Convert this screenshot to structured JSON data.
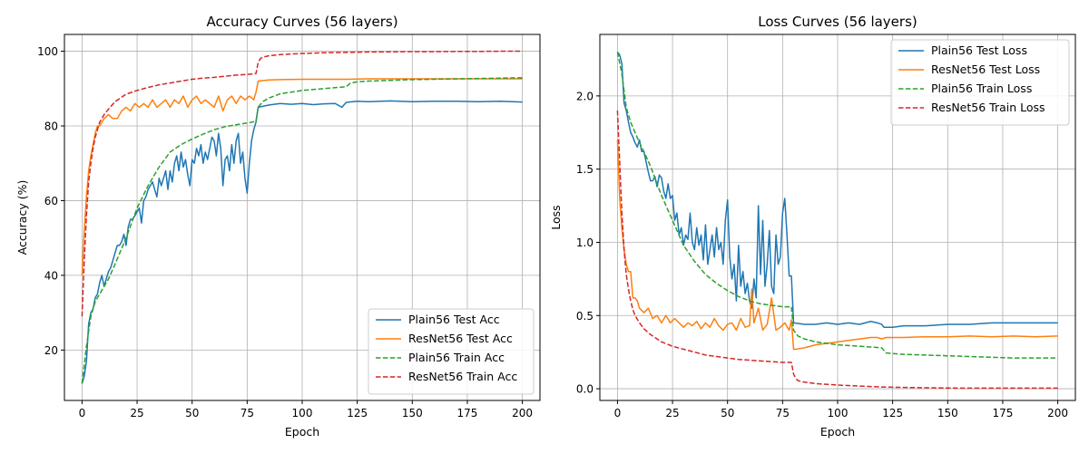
{
  "chart_data": [
    {
      "type": "line",
      "title": "Accuracy Curves (56 layers)",
      "xlabel": "Epoch",
      "ylabel": "Accuracy (%)",
      "xlim": [
        -8,
        208
      ],
      "ylim": [
        6.5,
        104.5
      ],
      "xticks": [
        0,
        25,
        50,
        75,
        100,
        125,
        150,
        175,
        200
      ],
      "yticks": [
        20,
        40,
        60,
        80,
        100
      ],
      "grid": true,
      "legend_position": "lower-right",
      "series": [
        {
          "name": "Plain56 Test Acc",
          "color": "#1f77b4",
          "style": "solid",
          "x": [
            0,
            1,
            2,
            3,
            4,
            5,
            6,
            7,
            8,
            9,
            10,
            11,
            12,
            13,
            14,
            15,
            16,
            17,
            18,
            19,
            20,
            21,
            22,
            23,
            24,
            25,
            26,
            27,
            28,
            29,
            30,
            31,
            32,
            33,
            34,
            35,
            36,
            37,
            38,
            39,
            40,
            41,
            42,
            43,
            44,
            45,
            46,
            47,
            48,
            49,
            50,
            51,
            52,
            53,
            54,
            55,
            56,
            57,
            58,
            59,
            60,
            61,
            62,
            63,
            64,
            65,
            66,
            67,
            68,
            69,
            70,
            71,
            72,
            73,
            74,
            75,
            76,
            77,
            78,
            79,
            80,
            85,
            90,
            95,
            100,
            105,
            110,
            115,
            118,
            120,
            125,
            130,
            140,
            150,
            160,
            170,
            180,
            190,
            200
          ],
          "y": [
            11,
            13,
            17,
            27,
            30,
            31,
            34,
            35,
            38,
            40,
            37,
            39,
            41,
            42,
            44,
            46,
            48,
            48,
            49,
            51,
            48,
            53,
            55,
            55,
            56,
            57,
            58,
            54,
            60,
            61,
            63,
            64,
            65,
            63,
            61,
            66,
            64,
            66,
            68,
            63,
            68,
            65,
            70,
            72,
            68,
            73,
            69,
            71,
            67,
            64,
            71,
            70,
            74,
            72,
            75,
            70,
            73,
            71,
            74,
            77,
            76,
            72,
            78,
            74,
            64,
            71,
            72,
            68,
            75,
            70,
            76,
            78,
            70,
            73,
            66,
            62,
            70,
            76,
            79,
            81,
            85,
            85.6,
            86,
            85.8,
            86,
            85.7,
            85.9,
            86,
            85,
            86.3,
            86.6,
            86.5,
            86.7,
            86.5,
            86.6,
            86.6,
            86.5,
            86.6,
            86.4
          ]
        },
        {
          "name": "ResNet56 Test Acc",
          "color": "#ff7f0e",
          "style": "solid",
          "x": [
            0,
            1,
            2,
            3,
            4,
            5,
            6,
            7,
            8,
            9,
            10,
            12,
            14,
            16,
            18,
            20,
            22,
            24,
            26,
            28,
            30,
            32,
            34,
            36,
            38,
            40,
            42,
            44,
            46,
            48,
            50,
            52,
            54,
            56,
            58,
            60,
            62,
            64,
            66,
            68,
            70,
            72,
            74,
            76,
            78,
            79,
            80,
            85,
            90,
            100,
            110,
            120,
            130,
            140,
            150,
            160,
            170,
            180,
            190,
            200
          ],
          "y": [
            40,
            52,
            61,
            68,
            72,
            75,
            78,
            80,
            80,
            81,
            82,
            83,
            82,
            82,
            84,
            85,
            84,
            86,
            85,
            86,
            85,
            87,
            85,
            86,
            87,
            85,
            87,
            86,
            88,
            85,
            87,
            88,
            86,
            87,
            86,
            85,
            88,
            84,
            87,
            88,
            86,
            88,
            87,
            88,
            87,
            89,
            92,
            92.3,
            92.4,
            92.5,
            92.5,
            92.5,
            92.6,
            92.6,
            92.6,
            92.6,
            92.6,
            92.6,
            92.6,
            92.6
          ]
        },
        {
          "name": "Plain56 Train Acc",
          "color": "#2ca02c",
          "style": "dashed",
          "x": [
            0,
            2,
            4,
            6,
            8,
            10,
            12,
            15,
            20,
            25,
            30,
            35,
            40,
            45,
            50,
            55,
            60,
            65,
            70,
            75,
            79,
            80,
            82,
            85,
            90,
            100,
            110,
            120,
            122,
            125,
            130,
            140,
            150,
            160,
            170,
            180,
            190,
            200
          ],
          "y": [
            11,
            21,
            29,
            33,
            35,
            37,
            39,
            43,
            50,
            58,
            64,
            69,
            73,
            75,
            76.5,
            77.8,
            79,
            79.8,
            80.3,
            80.8,
            81.2,
            85,
            86.5,
            87.5,
            88.6,
            89.5,
            90,
            90.5,
            91.5,
            91.8,
            92,
            92.2,
            92.4,
            92.5,
            92.6,
            92.7,
            92.8,
            92.9
          ]
        },
        {
          "name": "ResNet56 Train Acc",
          "color": "#d62728",
          "style": "dashed",
          "x": [
            0,
            1,
            2,
            3,
            4,
            5,
            6,
            7,
            8,
            10,
            12,
            15,
            20,
            25,
            30,
            35,
            40,
            45,
            50,
            55,
            60,
            65,
            70,
            75,
            79,
            80,
            81,
            82,
            85,
            90,
            100,
            110,
            120,
            130,
            140,
            150,
            160,
            170,
            180,
            190,
            200
          ],
          "y": [
            29,
            44,
            56,
            65,
            70,
            74,
            77,
            79,
            81,
            83,
            84.5,
            86.5,
            88.5,
            89.5,
            90.3,
            91,
            91.5,
            92,
            92.5,
            92.8,
            93,
            93.3,
            93.6,
            93.8,
            94,
            97,
            98,
            98.4,
            98.8,
            99.1,
            99.4,
            99.6,
            99.7,
            99.8,
            99.85,
            99.9,
            99.9,
            99.95,
            99.95,
            100,
            100
          ]
        }
      ]
    },
    {
      "type": "line",
      "title": "Loss Curves (56 layers)",
      "xlabel": "Epoch",
      "ylabel": "Loss",
      "xlim": [
        -8,
        208
      ],
      "ylim": [
        -0.08,
        2.42
      ],
      "xticks": [
        0,
        25,
        50,
        75,
        100,
        125,
        150,
        175,
        200
      ],
      "yticks": [
        0.0,
        0.5,
        1.0,
        1.5,
        2.0
      ],
      "grid": true,
      "legend_position": "upper-right",
      "series": [
        {
          "name": "Plain56 Test Loss",
          "color": "#1f77b4",
          "style": "solid",
          "x": [
            0,
            1,
            2,
            3,
            4,
            5,
            6,
            7,
            8,
            9,
            10,
            11,
            12,
            13,
            14,
            15,
            16,
            17,
            18,
            19,
            20,
            21,
            22,
            23,
            24,
            25,
            26,
            27,
            28,
            29,
            30,
            31,
            32,
            33,
            34,
            35,
            36,
            37,
            38,
            39,
            40,
            41,
            42,
            43,
            44,
            45,
            46,
            47,
            48,
            49,
            50,
            51,
            52,
            53,
            54,
            55,
            56,
            57,
            58,
            59,
            60,
            61,
            62,
            63,
            64,
            65,
            66,
            67,
            68,
            69,
            70,
            71,
            72,
            73,
            74,
            75,
            76,
            77,
            78,
            79,
            80,
            85,
            90,
            95,
            100,
            105,
            110,
            115,
            118,
            120,
            121,
            125,
            130,
            140,
            150,
            160,
            170,
            180,
            190,
            200
          ],
          "y": [
            2.3,
            2.28,
            2.22,
            1.95,
            1.9,
            1.82,
            1.75,
            1.72,
            1.68,
            1.65,
            1.7,
            1.62,
            1.62,
            1.55,
            1.48,
            1.42,
            1.42,
            1.45,
            1.38,
            1.46,
            1.44,
            1.35,
            1.3,
            1.4,
            1.3,
            1.32,
            1.15,
            1.2,
            1.05,
            1.1,
            0.98,
            1.05,
            1.02,
            1.2,
            1.0,
            0.95,
            1.1,
            0.98,
            1.05,
            0.88,
            1.12,
            0.85,
            0.95,
            1.05,
            0.9,
            1.1,
            0.95,
            1.0,
            0.85,
            1.15,
            1.29,
            0.9,
            0.75,
            0.85,
            0.6,
            0.98,
            0.7,
            0.8,
            0.65,
            0.72,
            0.6,
            0.55,
            0.75,
            0.62,
            1.25,
            0.78,
            1.15,
            0.7,
            0.85,
            1.08,
            0.7,
            0.65,
            1.05,
            0.85,
            0.9,
            1.2,
            1.3,
            1.05,
            0.77,
            0.77,
            0.45,
            0.44,
            0.44,
            0.45,
            0.44,
            0.45,
            0.44,
            0.46,
            0.45,
            0.44,
            0.42,
            0.42,
            0.43,
            0.43,
            0.44,
            0.44,
            0.45,
            0.45,
            0.45,
            0.45
          ]
        },
        {
          "name": "ResNet56 Test Loss",
          "color": "#ff7f0e",
          "style": "solid",
          "x": [
            0,
            1,
            2,
            3,
            4,
            5,
            6,
            7,
            8,
            9,
            10,
            12,
            14,
            16,
            18,
            20,
            22,
            24,
            26,
            28,
            30,
            32,
            34,
            36,
            38,
            40,
            42,
            44,
            46,
            48,
            50,
            52,
            54,
            56,
            58,
            60,
            61,
            62,
            64,
            66,
            68,
            70,
            72,
            74,
            76,
            78,
            79,
            80,
            81,
            85,
            90,
            100,
            110,
            115,
            118,
            120,
            122,
            130,
            140,
            150,
            160,
            170,
            180,
            190,
            200
          ],
          "y": [
            1.7,
            1.3,
            1.1,
            0.95,
            0.85,
            0.8,
            0.8,
            0.62,
            0.62,
            0.6,
            0.55,
            0.52,
            0.55,
            0.48,
            0.5,
            0.45,
            0.5,
            0.45,
            0.48,
            0.45,
            0.42,
            0.45,
            0.43,
            0.46,
            0.41,
            0.45,
            0.42,
            0.48,
            0.43,
            0.4,
            0.44,
            0.45,
            0.4,
            0.48,
            0.42,
            0.43,
            0.68,
            0.45,
            0.55,
            0.4,
            0.44,
            0.62,
            0.4,
            0.42,
            0.45,
            0.4,
            0.47,
            0.27,
            0.27,
            0.28,
            0.3,
            0.32,
            0.34,
            0.35,
            0.35,
            0.34,
            0.35,
            0.35,
            0.355,
            0.355,
            0.36,
            0.355,
            0.36,
            0.355,
            0.36
          ]
        },
        {
          "name": "Plain56 Train Loss",
          "color": "#2ca02c",
          "style": "dashed",
          "x": [
            0,
            2,
            4,
            6,
            8,
            10,
            12,
            15,
            20,
            25,
            30,
            35,
            40,
            45,
            50,
            55,
            60,
            65,
            70,
            75,
            79,
            80,
            82,
            85,
            90,
            100,
            110,
            120,
            122,
            125,
            130,
            140,
            150,
            160,
            170,
            180,
            190,
            200
          ],
          "y": [
            2.3,
            2.15,
            1.92,
            1.82,
            1.75,
            1.68,
            1.62,
            1.52,
            1.32,
            1.15,
            0.98,
            0.87,
            0.78,
            0.72,
            0.67,
            0.63,
            0.6,
            0.58,
            0.57,
            0.56,
            0.56,
            0.4,
            0.36,
            0.34,
            0.32,
            0.3,
            0.29,
            0.28,
            0.245,
            0.24,
            0.235,
            0.23,
            0.225,
            0.22,
            0.215,
            0.21,
            0.21,
            0.21
          ]
        },
        {
          "name": "ResNet56 Train Loss",
          "color": "#d62728",
          "style": "dashed",
          "x": [
            0,
            1,
            2,
            3,
            4,
            5,
            6,
            7,
            8,
            10,
            12,
            15,
            20,
            25,
            30,
            35,
            40,
            45,
            50,
            55,
            60,
            65,
            70,
            75,
            79,
            80,
            81,
            82,
            85,
            90,
            100,
            110,
            120,
            130,
            140,
            150,
            160,
            170,
            180,
            190,
            200
          ],
          "y": [
            1.9,
            1.55,
            1.2,
            0.95,
            0.78,
            0.68,
            0.6,
            0.54,
            0.5,
            0.45,
            0.41,
            0.37,
            0.32,
            0.29,
            0.27,
            0.25,
            0.23,
            0.22,
            0.21,
            0.2,
            0.195,
            0.19,
            0.185,
            0.18,
            0.18,
            0.1,
            0.07,
            0.055,
            0.045,
            0.035,
            0.025,
            0.018,
            0.012,
            0.009,
            0.007,
            0.005,
            0.004,
            0.004,
            0.004,
            0.004,
            0.004
          ]
        }
      ]
    }
  ]
}
